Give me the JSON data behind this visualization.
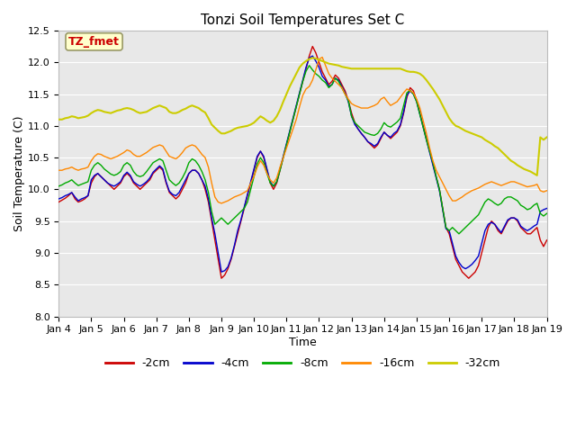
{
  "title": "Tonzi Soil Temperatures Set C",
  "xlabel": "Time",
  "ylabel": "Soil Temperature (C)",
  "annotation": "TZ_fmet",
  "ylim": [
    8.0,
    12.5
  ],
  "colors": {
    "-2cm": "#cc0000",
    "-4cm": "#0000cc",
    "-8cm": "#00aa00",
    "-16cm": "#ff8800",
    "-32cm": "#cccc00"
  },
  "annotation_box_bg": "#ffffcc",
  "annotation_box_edge": "#999966",
  "yticks": [
    8.0,
    8.5,
    9.0,
    9.5,
    10.0,
    10.5,
    11.0,
    11.5,
    12.0,
    12.5
  ],
  "tick_labels": [
    "Jan 4",
    "Jan 5",
    "Jan 6",
    "Jan 7",
    "Jan 8",
    "Jan 9",
    "Jan 10",
    "Jan 11",
    "Jan 12",
    "Jan 13",
    "Jan 14",
    "Jan 15",
    "Jan 16",
    "Jan 17",
    "Jan 18",
    "Jan 19"
  ],
  "x": [
    0,
    0.1,
    0.2,
    0.3,
    0.4,
    0.5,
    0.6,
    0.7,
    0.8,
    0.9,
    1.0,
    1.1,
    1.2,
    1.3,
    1.4,
    1.5,
    1.6,
    1.7,
    1.8,
    1.9,
    2.0,
    2.1,
    2.2,
    2.3,
    2.4,
    2.5,
    2.6,
    2.7,
    2.8,
    2.9,
    3.0,
    3.1,
    3.2,
    3.3,
    3.4,
    3.5,
    3.6,
    3.7,
    3.8,
    3.9,
    4.0,
    4.1,
    4.2,
    4.3,
    4.4,
    4.5,
    4.6,
    4.7,
    4.8,
    4.9,
    5.0,
    5.1,
    5.2,
    5.3,
    5.4,
    5.5,
    5.6,
    5.7,
    5.8,
    5.9,
    6.0,
    6.1,
    6.2,
    6.3,
    6.4,
    6.5,
    6.6,
    6.7,
    6.8,
    6.9,
    7.0,
    7.1,
    7.2,
    7.3,
    7.4,
    7.5,
    7.6,
    7.7,
    7.8,
    7.9,
    8.0,
    8.1,
    8.2,
    8.3,
    8.4,
    8.5,
    8.6,
    8.7,
    8.8,
    8.9,
    9.0,
    9.1,
    9.2,
    9.3,
    9.4,
    9.5,
    9.6,
    9.7,
    9.8,
    9.9,
    10.0,
    10.1,
    10.2,
    10.3,
    10.4,
    10.5,
    10.6,
    10.7,
    10.8,
    10.9,
    11.0,
    11.1,
    11.2,
    11.3,
    11.4,
    11.5,
    11.6,
    11.7,
    11.8,
    11.9,
    12.0,
    12.1,
    12.2,
    12.3,
    12.4,
    12.5,
    12.6,
    12.7,
    12.8,
    12.9,
    13.0,
    13.1,
    13.2,
    13.3,
    13.4,
    13.5,
    13.6,
    13.7,
    13.8,
    13.9,
    14.0,
    14.1,
    14.2,
    14.3,
    14.4,
    14.5,
    14.6,
    14.7,
    14.8,
    14.9,
    15.0
  ],
  "y_2cm": [
    9.8,
    9.83,
    9.86,
    9.9,
    9.95,
    9.85,
    9.8,
    9.82,
    9.85,
    9.9,
    10.1,
    10.2,
    10.25,
    10.2,
    10.15,
    10.1,
    10.05,
    10.0,
    10.05,
    10.1,
    10.2,
    10.25,
    10.2,
    10.1,
    10.05,
    10.0,
    10.05,
    10.1,
    10.15,
    10.25,
    10.3,
    10.35,
    10.3,
    10.1,
    9.95,
    9.9,
    9.85,
    9.9,
    10.0,
    10.1,
    10.25,
    10.3,
    10.3,
    10.25,
    10.15,
    10.0,
    9.8,
    9.5,
    9.2,
    8.9,
    8.6,
    8.65,
    8.75,
    8.9,
    9.1,
    9.3,
    9.5,
    9.7,
    9.9,
    10.1,
    10.3,
    10.5,
    10.6,
    10.5,
    10.3,
    10.1,
    10.0,
    10.1,
    10.3,
    10.5,
    10.7,
    10.9,
    11.1,
    11.3,
    11.5,
    11.7,
    11.9,
    12.1,
    12.25,
    12.15,
    12.0,
    11.85,
    11.75,
    11.65,
    11.7,
    11.8,
    11.75,
    11.65,
    11.55,
    11.4,
    11.2,
    11.05,
    10.95,
    10.88,
    10.82,
    10.75,
    10.7,
    10.65,
    10.7,
    10.8,
    10.9,
    10.85,
    10.8,
    10.85,
    10.9,
    11.0,
    11.2,
    11.45,
    11.6,
    11.55,
    11.4,
    11.2,
    11.0,
    10.8,
    10.6,
    10.4,
    10.2,
    10.0,
    9.7,
    9.4,
    9.3,
    9.1,
    8.9,
    8.8,
    8.7,
    8.65,
    8.6,
    8.65,
    8.7,
    8.8,
    9.0,
    9.2,
    9.4,
    9.5,
    9.45,
    9.35,
    9.3,
    9.4,
    9.5,
    9.55,
    9.55,
    9.5,
    9.4,
    9.35,
    9.3,
    9.3,
    9.35,
    9.4,
    9.2,
    9.1,
    9.2
  ],
  "y_4cm": [
    9.85,
    9.87,
    9.9,
    9.92,
    9.95,
    9.88,
    9.82,
    9.85,
    9.87,
    9.9,
    10.15,
    10.22,
    10.25,
    10.2,
    10.15,
    10.1,
    10.07,
    10.05,
    10.08,
    10.12,
    10.22,
    10.27,
    10.22,
    10.12,
    10.08,
    10.05,
    10.08,
    10.12,
    10.18,
    10.27,
    10.32,
    10.37,
    10.32,
    10.12,
    9.97,
    9.92,
    9.9,
    9.95,
    10.05,
    10.15,
    10.25,
    10.3,
    10.3,
    10.25,
    10.15,
    10.05,
    9.85,
    9.55,
    9.3,
    9.0,
    8.7,
    8.72,
    8.78,
    8.92,
    9.12,
    9.35,
    9.52,
    9.72,
    9.92,
    10.12,
    10.32,
    10.52,
    10.6,
    10.52,
    10.32,
    10.12,
    10.05,
    10.12,
    10.32,
    10.52,
    10.72,
    10.92,
    11.12,
    11.32,
    11.52,
    11.72,
    11.92,
    12.07,
    12.1,
    12.02,
    11.92,
    11.78,
    11.72,
    11.62,
    11.65,
    11.75,
    11.72,
    11.62,
    11.52,
    11.38,
    11.15,
    11.02,
    10.95,
    10.88,
    10.82,
    10.75,
    10.72,
    10.68,
    10.72,
    10.82,
    10.9,
    10.85,
    10.82,
    10.88,
    10.92,
    11.02,
    11.22,
    11.48,
    11.55,
    11.5,
    11.38,
    11.18,
    10.98,
    10.78,
    10.58,
    10.38,
    10.18,
    9.98,
    9.68,
    9.38,
    9.35,
    9.15,
    8.95,
    8.85,
    8.78,
    8.75,
    8.78,
    8.82,
    8.88,
    8.95,
    9.15,
    9.35,
    9.45,
    9.48,
    9.45,
    9.38,
    9.32,
    9.42,
    9.52,
    9.55,
    9.55,
    9.52,
    9.42,
    9.38,
    9.35,
    9.38,
    9.42,
    9.45,
    9.65,
    9.68,
    9.7
  ],
  "y_8cm": [
    10.05,
    10.07,
    10.1,
    10.12,
    10.15,
    10.1,
    10.06,
    10.08,
    10.1,
    10.12,
    10.3,
    10.38,
    10.42,
    10.38,
    10.32,
    10.28,
    10.24,
    10.22,
    10.24,
    10.28,
    10.38,
    10.42,
    10.38,
    10.28,
    10.22,
    10.2,
    10.22,
    10.28,
    10.35,
    10.42,
    10.45,
    10.48,
    10.45,
    10.3,
    10.15,
    10.1,
    10.06,
    10.1,
    10.18,
    10.28,
    10.42,
    10.48,
    10.45,
    10.38,
    10.28,
    10.15,
    9.95,
    9.65,
    9.45,
    9.5,
    9.55,
    9.5,
    9.45,
    9.5,
    9.55,
    9.6,
    9.65,
    9.7,
    9.8,
    10.0,
    10.2,
    10.4,
    10.5,
    10.42,
    10.25,
    10.1,
    10.05,
    10.12,
    10.3,
    10.5,
    10.7,
    10.9,
    11.1,
    11.3,
    11.5,
    11.7,
    11.86,
    11.95,
    11.88,
    11.82,
    11.78,
    11.72,
    11.68,
    11.6,
    11.65,
    11.75,
    11.7,
    11.6,
    11.5,
    11.4,
    11.15,
    11.05,
    11.0,
    10.95,
    10.9,
    10.88,
    10.86,
    10.85,
    10.88,
    10.95,
    11.05,
    11.0,
    10.98,
    11.02,
    11.06,
    11.12,
    11.32,
    11.52,
    11.56,
    11.5,
    11.38,
    11.18,
    10.98,
    10.78,
    10.6,
    10.42,
    10.2,
    10.0,
    9.7,
    9.4,
    9.35,
    9.4,
    9.35,
    9.3,
    9.35,
    9.4,
    9.45,
    9.5,
    9.55,
    9.6,
    9.7,
    9.8,
    9.85,
    9.82,
    9.78,
    9.75,
    9.78,
    9.85,
    9.88,
    9.88,
    9.85,
    9.82,
    9.75,
    9.72,
    9.68,
    9.7,
    9.75,
    9.78,
    9.62,
    9.58,
    9.62
  ],
  "y_16cm": [
    10.3,
    10.3,
    10.32,
    10.33,
    10.35,
    10.32,
    10.3,
    10.32,
    10.33,
    10.35,
    10.45,
    10.52,
    10.56,
    10.55,
    10.52,
    10.5,
    10.48,
    10.5,
    10.52,
    10.55,
    10.58,
    10.62,
    10.6,
    10.55,
    10.52,
    10.52,
    10.55,
    10.58,
    10.62,
    10.66,
    10.68,
    10.7,
    10.68,
    10.6,
    10.52,
    10.5,
    10.48,
    10.52,
    10.58,
    10.65,
    10.68,
    10.7,
    10.68,
    10.62,
    10.55,
    10.5,
    10.35,
    10.1,
    9.88,
    9.8,
    9.78,
    9.8,
    9.82,
    9.85,
    9.88,
    9.9,
    9.92,
    9.95,
    9.98,
    10.1,
    10.2,
    10.35,
    10.45,
    10.38,
    10.25,
    10.15,
    10.1,
    10.18,
    10.35,
    10.5,
    10.65,
    10.8,
    10.95,
    11.1,
    11.3,
    11.48,
    11.58,
    11.62,
    11.72,
    11.88,
    12.05,
    12.08,
    11.95,
    11.82,
    11.75,
    11.7,
    11.65,
    11.6,
    11.5,
    11.42,
    11.35,
    11.32,
    11.3,
    11.28,
    11.28,
    11.28,
    11.3,
    11.32,
    11.35,
    11.42,
    11.45,
    11.38,
    11.32,
    11.35,
    11.38,
    11.45,
    11.52,
    11.58,
    11.55,
    11.52,
    11.42,
    11.28,
    11.08,
    10.88,
    10.65,
    10.45,
    10.3,
    10.2,
    10.1,
    10.0,
    9.9,
    9.82,
    9.82,
    9.85,
    9.88,
    9.92,
    9.95,
    9.98,
    10.0,
    10.02,
    10.05,
    10.08,
    10.1,
    10.12,
    10.1,
    10.08,
    10.06,
    10.08,
    10.1,
    10.12,
    10.12,
    10.1,
    10.08,
    10.06,
    10.04,
    10.05,
    10.06,
    10.08,
    9.98,
    9.96,
    9.98
  ],
  "y_32cm": [
    11.1,
    11.1,
    11.12,
    11.13,
    11.15,
    11.14,
    11.12,
    11.13,
    11.14,
    11.16,
    11.2,
    11.23,
    11.25,
    11.24,
    11.22,
    11.21,
    11.2,
    11.22,
    11.24,
    11.25,
    11.27,
    11.28,
    11.27,
    11.25,
    11.22,
    11.2,
    11.21,
    11.22,
    11.25,
    11.28,
    11.3,
    11.32,
    11.3,
    11.28,
    11.22,
    11.2,
    11.2,
    11.22,
    11.25,
    11.27,
    11.3,
    11.32,
    11.3,
    11.28,
    11.24,
    11.21,
    11.12,
    11.02,
    10.97,
    10.92,
    10.88,
    10.88,
    10.9,
    10.92,
    10.95,
    10.97,
    10.98,
    10.99,
    11.0,
    11.02,
    11.05,
    11.1,
    11.15,
    11.12,
    11.08,
    11.05,
    11.08,
    11.15,
    11.25,
    11.38,
    11.5,
    11.62,
    11.72,
    11.82,
    11.92,
    11.98,
    12.02,
    12.05,
    12.07,
    12.06,
    12.04,
    12.02,
    12.0,
    11.98,
    11.97,
    11.96,
    11.95,
    11.93,
    11.92,
    11.91,
    11.9,
    11.9,
    11.9,
    11.9,
    11.9,
    11.9,
    11.9,
    11.9,
    11.9,
    11.9,
    11.9,
    11.9,
    11.9,
    11.9,
    11.9,
    11.9,
    11.88,
    11.86,
    11.85,
    11.85,
    11.84,
    11.82,
    11.78,
    11.72,
    11.65,
    11.58,
    11.5,
    11.42,
    11.32,
    11.22,
    11.12,
    11.05,
    11.0,
    10.98,
    10.95,
    10.92,
    10.9,
    10.88,
    10.86,
    10.84,
    10.82,
    10.78,
    10.75,
    10.72,
    10.68,
    10.65,
    10.6,
    10.55,
    10.5,
    10.45,
    10.42,
    10.38,
    10.35,
    10.32,
    10.3,
    10.28,
    10.25,
    10.22,
    10.82,
    10.78,
    10.82
  ]
}
